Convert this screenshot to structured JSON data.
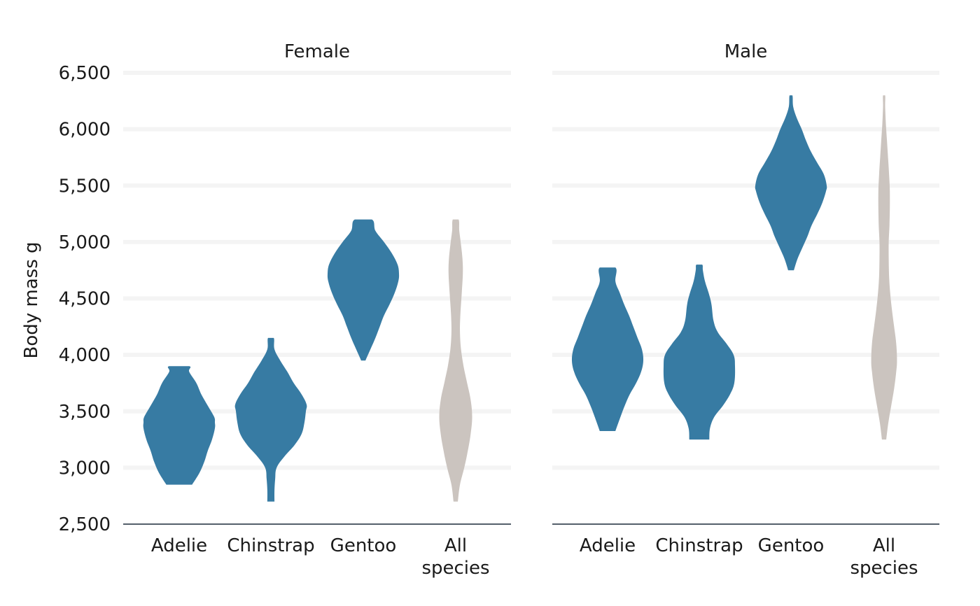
{
  "chart_data": {
    "type": "violin",
    "ylabel": "Body mass g",
    "xlabel": "",
    "ylim": [
      2500,
      6500
    ],
    "yticks": [
      2500,
      3000,
      3500,
      4000,
      4500,
      5000,
      5500,
      6000,
      6500
    ],
    "ytick_labels": [
      "2,500",
      "3,000",
      "3,500",
      "4,000",
      "4,500",
      "5,000",
      "5,500",
      "6,000",
      "6,500"
    ],
    "grid": "horizontal",
    "colors": {
      "species": "#377ba3",
      "all_species": "#cbc4bf"
    },
    "categories": [
      [
        "Adelie"
      ],
      [
        "Chinstrap"
      ],
      [
        "Gentoo"
      ],
      [
        "All",
        "species"
      ]
    ],
    "panels": [
      {
        "title": "Female",
        "violins": [
          {
            "category": "Adelie",
            "min": 2850,
            "max": 3900,
            "density": [
              [
                2850,
                0.36
              ],
              [
                2950,
                0.56
              ],
              [
                3050,
                0.7
              ],
              [
                3150,
                0.8
              ],
              [
                3250,
                0.92
              ],
              [
                3350,
                1.0
              ],
              [
                3400,
                1.0
              ],
              [
                3450,
                0.98
              ],
              [
                3550,
                0.8
              ],
              [
                3650,
                0.62
              ],
              [
                3750,
                0.48
              ],
              [
                3850,
                0.28
              ],
              [
                3900,
                0.28
              ]
            ]
          },
          {
            "category": "Chinstrap",
            "min": 2700,
            "max": 4150,
            "density": [
              [
                2700,
                0.1
              ],
              [
                2800,
                0.1
              ],
              [
                2900,
                0.12
              ],
              [
                3000,
                0.16
              ],
              [
                3100,
                0.38
              ],
              [
                3200,
                0.66
              ],
              [
                3300,
                0.86
              ],
              [
                3400,
                0.94
              ],
              [
                3500,
                0.98
              ],
              [
                3560,
                1.0
              ],
              [
                3650,
                0.86
              ],
              [
                3750,
                0.64
              ],
              [
                3850,
                0.46
              ],
              [
                3950,
                0.26
              ],
              [
                4050,
                0.1
              ],
              [
                4150,
                0.08
              ]
            ]
          },
          {
            "category": "Gentoo",
            "min": 3950,
            "max": 5200,
            "density": [
              [
                3950,
                0.06
              ],
              [
                4050,
                0.2
              ],
              [
                4150,
                0.34
              ],
              [
                4250,
                0.46
              ],
              [
                4350,
                0.58
              ],
              [
                4450,
                0.74
              ],
              [
                4550,
                0.88
              ],
              [
                4650,
                0.98
              ],
              [
                4720,
                1.0
              ],
              [
                4800,
                0.96
              ],
              [
                4900,
                0.8
              ],
              [
                5000,
                0.58
              ],
              [
                5100,
                0.34
              ],
              [
                5200,
                0.24
              ]
            ]
          },
          {
            "category": "All species",
            "min": 2700,
            "max": 5200,
            "all_species": true,
            "density": [
              [
                2700,
                0.06
              ],
              [
                2850,
                0.12
              ],
              [
                3000,
                0.24
              ],
              [
                3150,
                0.34
              ],
              [
                3300,
                0.42
              ],
              [
                3450,
                0.46
              ],
              [
                3600,
                0.42
              ],
              [
                3750,
                0.32
              ],
              [
                3900,
                0.22
              ],
              [
                4050,
                0.15
              ],
              [
                4200,
                0.12
              ],
              [
                4350,
                0.13
              ],
              [
                4550,
                0.17
              ],
              [
                4720,
                0.2
              ],
              [
                4850,
                0.19
              ],
              [
                5000,
                0.14
              ],
              [
                5100,
                0.1
              ],
              [
                5200,
                0.08
              ]
            ]
          }
        ]
      },
      {
        "title": "Male",
        "violins": [
          {
            "category": "Adelie",
            "min": 3325,
            "max": 4775,
            "density": [
              [
                3325,
                0.22
              ],
              [
                3450,
                0.36
              ],
              [
                3550,
                0.48
              ],
              [
                3650,
                0.62
              ],
              [
                3750,
                0.8
              ],
              [
                3850,
                0.94
              ],
              [
                3950,
                1.0
              ],
              [
                4050,
                0.96
              ],
              [
                4150,
                0.84
              ],
              [
                4250,
                0.72
              ],
              [
                4350,
                0.6
              ],
              [
                4450,
                0.46
              ],
              [
                4550,
                0.34
              ],
              [
                4650,
                0.22
              ],
              [
                4775,
                0.22
              ]
            ]
          },
          {
            "category": "Chinstrap",
            "min": 3250,
            "max": 4800,
            "density": [
              [
                3250,
                0.28
              ],
              [
                3350,
                0.3
              ],
              [
                3450,
                0.42
              ],
              [
                3550,
                0.66
              ],
              [
                3650,
                0.86
              ],
              [
                3750,
                0.98
              ],
              [
                3900,
                1.0
              ],
              [
                4000,
                0.96
              ],
              [
                4100,
                0.76
              ],
              [
                4200,
                0.52
              ],
              [
                4300,
                0.4
              ],
              [
                4450,
                0.34
              ],
              [
                4550,
                0.26
              ],
              [
                4650,
                0.16
              ],
              [
                4750,
                0.1
              ],
              [
                4800,
                0.08
              ]
            ]
          },
          {
            "category": "Gentoo",
            "min": 4750,
            "max": 6300,
            "density": [
              [
                4750,
                0.08
              ],
              [
                4850,
                0.18
              ],
              [
                4950,
                0.32
              ],
              [
                5050,
                0.46
              ],
              [
                5150,
                0.58
              ],
              [
                5250,
                0.74
              ],
              [
                5350,
                0.88
              ],
              [
                5450,
                0.98
              ],
              [
                5500,
                1.0
              ],
              [
                5600,
                0.92
              ],
              [
                5700,
                0.74
              ],
              [
                5800,
                0.56
              ],
              [
                5900,
                0.42
              ],
              [
                6000,
                0.3
              ],
              [
                6100,
                0.16
              ],
              [
                6200,
                0.06
              ],
              [
                6300,
                0.04
              ]
            ]
          },
          {
            "category": "All species",
            "min": 3250,
            "max": 6300,
            "all_species": true,
            "density": [
              [
                3250,
                0.06
              ],
              [
                3400,
                0.12
              ],
              [
                3550,
                0.2
              ],
              [
                3700,
                0.28
              ],
              [
                3850,
                0.34
              ],
              [
                3950,
                0.36
              ],
              [
                4100,
                0.34
              ],
              [
                4250,
                0.28
              ],
              [
                4400,
                0.22
              ],
              [
                4550,
                0.17
              ],
              [
                4700,
                0.14
              ],
              [
                4850,
                0.13
              ],
              [
                5000,
                0.13
              ],
              [
                5150,
                0.15
              ],
              [
                5300,
                0.16
              ],
              [
                5450,
                0.16
              ],
              [
                5600,
                0.14
              ],
              [
                5750,
                0.11
              ],
              [
                5900,
                0.08
              ],
              [
                6050,
                0.05
              ],
              [
                6200,
                0.03
              ],
              [
                6300,
                0.03
              ]
            ]
          }
        ]
      }
    ]
  }
}
